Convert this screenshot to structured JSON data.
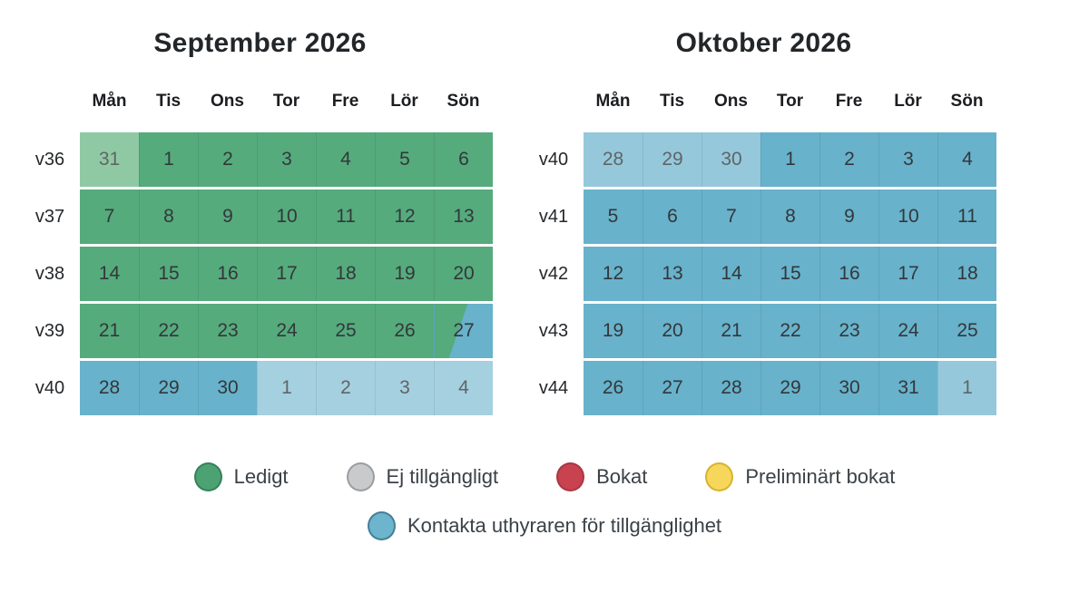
{
  "colors": {
    "available": "#55ab7c",
    "availableFaded": "#8fc9a4",
    "contact": "#68b2cb",
    "contactFaded": "#95c8da",
    "contactFadedLight": "#a5d0e0",
    "legendGreen": "#4da273",
    "legendGreenBorder": "#35825a",
    "legendGray": "#c9cacc",
    "legendGrayBorder": "#9b9ea1",
    "legendRed": "#c8434f",
    "legendRedBorder": "#a93744",
    "legendYellow": "#f6d75b",
    "legendYellowBorder": "#d8b32f",
    "legendBlue": "#6db4cd",
    "legendBlueBorder": "#457f97",
    "dayText": "#33373b",
    "dayTextMuted": "#5f6569",
    "weekLabel": "#25282b",
    "weekdayHeader": "#1b1d20",
    "title": "#232629",
    "legendText": "#3b4146"
  },
  "weekdays": [
    "Mån",
    "Tis",
    "Ons",
    "Tor",
    "Fre",
    "Lör",
    "Sön"
  ],
  "calendars": [
    {
      "title": "September 2026",
      "weeks": [
        {
          "label": "v36",
          "days": [
            {
              "d": "31",
              "c": "availableFaded",
              "muted": true
            },
            {
              "d": "1",
              "c": "available"
            },
            {
              "d": "2",
              "c": "available"
            },
            {
              "d": "3",
              "c": "available"
            },
            {
              "d": "4",
              "c": "available"
            },
            {
              "d": "5",
              "c": "available"
            },
            {
              "d": "6",
              "c": "available"
            }
          ]
        },
        {
          "label": "v37",
          "days": [
            {
              "d": "7",
              "c": "available"
            },
            {
              "d": "8",
              "c": "available"
            },
            {
              "d": "9",
              "c": "available"
            },
            {
              "d": "10",
              "c": "available"
            },
            {
              "d": "11",
              "c": "available"
            },
            {
              "d": "12",
              "c": "available"
            },
            {
              "d": "13",
              "c": "available"
            }
          ]
        },
        {
          "label": "v38",
          "days": [
            {
              "d": "14",
              "c": "available"
            },
            {
              "d": "15",
              "c": "available"
            },
            {
              "d": "16",
              "c": "available"
            },
            {
              "d": "17",
              "c": "available"
            },
            {
              "d": "18",
              "c": "available"
            },
            {
              "d": "19",
              "c": "available"
            },
            {
              "d": "20",
              "c": "available"
            }
          ]
        },
        {
          "label": "v39",
          "days": [
            {
              "d": "21",
              "c": "available"
            },
            {
              "d": "22",
              "c": "available"
            },
            {
              "d": "23",
              "c": "available"
            },
            {
              "d": "24",
              "c": "available"
            },
            {
              "d": "25",
              "c": "available"
            },
            {
              "d": "26",
              "c": "available"
            },
            {
              "d": "27",
              "c": "split"
            }
          ]
        },
        {
          "label": "v40",
          "days": [
            {
              "d": "28",
              "c": "contact"
            },
            {
              "d": "29",
              "c": "contact"
            },
            {
              "d": "30",
              "c": "contact"
            },
            {
              "d": "1",
              "c": "contactFadedLight",
              "muted": true
            },
            {
              "d": "2",
              "c": "contactFadedLight",
              "muted": true
            },
            {
              "d": "3",
              "c": "contactFadedLight",
              "muted": true
            },
            {
              "d": "4",
              "c": "contactFadedLight",
              "muted": true
            }
          ]
        }
      ]
    },
    {
      "title": "Oktober 2026",
      "weeks": [
        {
          "label": "v40",
          "days": [
            {
              "d": "28",
              "c": "contactFaded",
              "muted": true
            },
            {
              "d": "29",
              "c": "contactFaded",
              "muted": true
            },
            {
              "d": "30",
              "c": "contactFaded",
              "muted": true
            },
            {
              "d": "1",
              "c": "contact"
            },
            {
              "d": "2",
              "c": "contact"
            },
            {
              "d": "3",
              "c": "contact"
            },
            {
              "d": "4",
              "c": "contact"
            }
          ]
        },
        {
          "label": "v41",
          "days": [
            {
              "d": "5",
              "c": "contact"
            },
            {
              "d": "6",
              "c": "contact"
            },
            {
              "d": "7",
              "c": "contact"
            },
            {
              "d": "8",
              "c": "contact"
            },
            {
              "d": "9",
              "c": "contact"
            },
            {
              "d": "10",
              "c": "contact"
            },
            {
              "d": "11",
              "c": "contact"
            }
          ]
        },
        {
          "label": "v42",
          "days": [
            {
              "d": "12",
              "c": "contact"
            },
            {
              "d": "13",
              "c": "contact"
            },
            {
              "d": "14",
              "c": "contact"
            },
            {
              "d": "15",
              "c": "contact"
            },
            {
              "d": "16",
              "c": "contact"
            },
            {
              "d": "17",
              "c": "contact"
            },
            {
              "d": "18",
              "c": "contact"
            }
          ]
        },
        {
          "label": "v43",
          "days": [
            {
              "d": "19",
              "c": "contact"
            },
            {
              "d": "20",
              "c": "contact"
            },
            {
              "d": "21",
              "c": "contact"
            },
            {
              "d": "22",
              "c": "contact"
            },
            {
              "d": "23",
              "c": "contact"
            },
            {
              "d": "24",
              "c": "contact"
            },
            {
              "d": "25",
              "c": "contact"
            }
          ]
        },
        {
          "label": "v44",
          "days": [
            {
              "d": "26",
              "c": "contact"
            },
            {
              "d": "27",
              "c": "contact"
            },
            {
              "d": "28",
              "c": "contact"
            },
            {
              "d": "29",
              "c": "contact"
            },
            {
              "d": "30",
              "c": "contact"
            },
            {
              "d": "31",
              "c": "contact"
            },
            {
              "d": "1",
              "c": "contactFaded",
              "muted": true
            }
          ]
        }
      ]
    }
  ],
  "legend": {
    "rows": [
      [
        {
          "label": "Ledigt",
          "name": "available",
          "dot": "legendGreen",
          "dotBorder": "legendGreenBorder"
        },
        {
          "label": "Ej tillgängligt",
          "name": "unavailable",
          "dot": "legendGray",
          "dotBorder": "legendGrayBorder"
        },
        {
          "label": "Bokat",
          "name": "booked",
          "dot": "legendRed",
          "dotBorder": "legendRedBorder"
        },
        {
          "label": "Preliminärt bokat",
          "name": "tentatively-booked",
          "dot": "legendYellow",
          "dotBorder": "legendYellowBorder"
        }
      ],
      [
        {
          "label": "Kontakta uthyraren för tillgänglighet",
          "name": "contact-owner",
          "dot": "legendBlue",
          "dotBorder": "legendBlueBorder"
        }
      ]
    ]
  }
}
